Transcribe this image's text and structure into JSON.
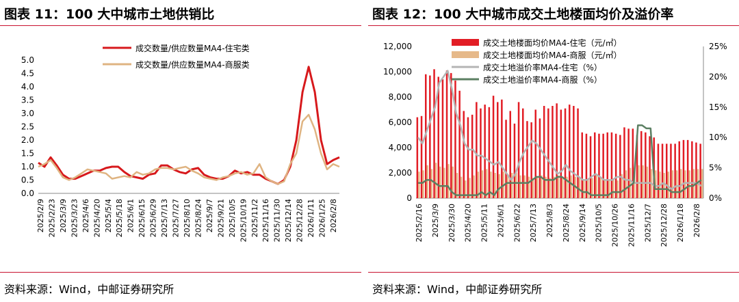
{
  "charts": [
    {
      "title": "图表 11：100 大中城市土地供销比",
      "source": "资料来源：Wind，中邮证券研究所",
      "chart_data": {
        "type": "line",
        "y_ticks": [
          "5.0",
          "4.5",
          "4.0",
          "3.5",
          "3.0",
          "2.5",
          "2.0",
          "1.5",
          "1.0",
          "0.5",
          "0.0"
        ],
        "ylim": [
          0,
          5
        ],
        "x_tick_labels": [
          "2025/2/9",
          "2025/2/23",
          "2025/3/9",
          "2025/3/23",
          "2025/4/6",
          "2025/4/20",
          "2025/5/4",
          "2025/5/18",
          "2025/6/1",
          "2025/6/15",
          "2025/6/29",
          "2025/7/13",
          "2025/7/27",
          "2025/8/10",
          "2025/8/24",
          "2025/9/7",
          "2025/9/21",
          "2025/10/5",
          "2025/10/19",
          "2025/11/2",
          "2025/11/16",
          "2025/11/30",
          "2025/12/14",
          "2025/12/28",
          "2026/1/11",
          "2026/1/25",
          "2026/2/8"
        ],
        "series": [
          {
            "name": "成交数量/供应数量MA4-住宅类",
            "color": "#d7191c",
            "values": [
              1.15,
              1.0,
              1.35,
              1.05,
              0.7,
              0.55,
              0.55,
              0.65,
              0.75,
              0.85,
              0.85,
              0.95,
              1.0,
              1.0,
              0.8,
              0.65,
              0.6,
              0.55,
              0.7,
              0.75,
              1.05,
              1.05,
              0.9,
              0.8,
              0.75,
              0.9,
              0.95,
              0.7,
              0.6,
              0.55,
              0.55,
              0.65,
              0.85,
              0.75,
              0.8,
              0.7,
              0.7,
              0.55,
              0.45,
              0.35,
              0.5,
              1.0,
              2.0,
              3.8,
              4.75,
              3.8,
              2.0,
              1.1,
              1.25,
              1.35
            ]
          },
          {
            "name": "成交数量/供应数量MA4-商服类",
            "color": "#dfb482",
            "values": [
              1.0,
              1.1,
              1.25,
              0.95,
              0.6,
              0.5,
              0.6,
              0.75,
              0.9,
              0.85,
              0.8,
              0.75,
              0.55,
              0.6,
              0.65,
              0.6,
              0.8,
              0.7,
              0.75,
              0.9,
              0.95,
              0.95,
              0.9,
              0.95,
              1.0,
              0.85,
              0.75,
              0.6,
              0.55,
              0.5,
              0.6,
              0.65,
              0.75,
              0.8,
              0.7,
              0.75,
              1.1,
              0.6,
              0.45,
              0.35,
              0.45,
              1.1,
              1.5,
              2.7,
              2.95,
              2.4,
              1.5,
              0.9,
              1.1,
              1.0
            ]
          }
        ]
      }
    },
    {
      "title": "图表 12：100 大中城市成交土地楼面均价及溢价率",
      "source": "资料来源：Wind，中邮证券研究所",
      "chart_data": {
        "type": "bar",
        "y_left_ticks": [
          "12,000",
          "10,000",
          "8,000",
          "6,000",
          "4,000",
          "2,000",
          "0"
        ],
        "ylim_left": [
          0,
          12000
        ],
        "y_right_ticks": [
          "25%",
          "20%",
          "15%",
          "10%",
          "5%",
          "0%"
        ],
        "ylim_right": [
          0,
          25
        ],
        "x_tick_labels": [
          "2025/2/16",
          "2025/3/9",
          "2025/3/30",
          "2025/4/20",
          "2025/5/11",
          "2025/6/1",
          "2025/6/22",
          "2025/7/13",
          "2025/8/3",
          "2025/8/24",
          "2025/9/14",
          "2025/10/5",
          "2025/10/26",
          "2025/11/16",
          "2025/12/7",
          "2025/12/28",
          "2026/1/18",
          "2026/2/8"
        ],
        "series": [
          {
            "name": "成交土地楼面均价MA4-住宅（元/㎡）",
            "kind": "bar",
            "axis": "left",
            "color": "#e21d25",
            "values": [
              6400,
              6500,
              9800,
              9700,
              10200,
              9600,
              9400,
              10100,
              9900,
              9300,
              8500,
              6900,
              6400,
              6600,
              7600,
              7100,
              7400,
              7200,
              8100,
              7600,
              7800,
              6200,
              6900,
              5900,
              7600,
              7100,
              6100,
              6000,
              7000,
              6300,
              7300,
              7100,
              7300,
              7500,
              7000,
              7100,
              7400,
              7300,
              7100,
              5200,
              5100,
              4900,
              5200,
              5100,
              5100,
              5200,
              5200,
              5100,
              5000,
              5600,
              5500,
              5500,
              5000,
              5300,
              5200,
              4900,
              4800,
              4300,
              4300,
              4300,
              4300,
              4300,
              4500,
              4600,
              4600,
              4500,
              4400,
              4300
            ]
          },
          {
            "name": "成交土地楼面均价MA4-商服（元/㎡）",
            "kind": "bar",
            "axis": "left",
            "color": "#e6b98a",
            "values": [
              2100,
              2200,
              2600,
              2300,
              2800,
              2500,
              2400,
              2700,
              2500,
              2000,
              1700,
              1400,
              1600,
              1800,
              2100,
              2200,
              2300,
              2100,
              2000,
              1900,
              2100,
              1900,
              2000,
              2000,
              1800,
              1800,
              1700,
              1600,
              1700,
              1800,
              1700,
              1600,
              1700,
              1800,
              1700,
              1700,
              1800,
              1700,
              1600,
              1500,
              1500,
              1600,
              1800,
              1700,
              1500,
              1400,
              1500,
              1400,
              1900,
              2200,
              2400,
              2400,
              2600,
              2600,
              2500,
              2300,
              2200,
              2100,
              2000,
              2100,
              2200,
              2200,
              2300,
              2200,
              2200,
              2300,
              2300,
              2300
            ]
          },
          {
            "name": "成交土地溢价率MA4-住宅（%）",
            "kind": "line",
            "axis": "right",
            "color": "#b4b4b4",
            "values": [
              10,
              9,
              11,
              13,
              15,
              19,
              20,
              21,
              18,
              14,
              12,
              9,
              8,
              8,
              7,
              7,
              6.5,
              6,
              5.5,
              6,
              5,
              4,
              3,
              4,
              6,
              7.5,
              8.5,
              9.5,
              9,
              8,
              7,
              6,
              5,
              4,
              4.5,
              5.5,
              4.5,
              4,
              3.5,
              3,
              3,
              3.5,
              4,
              3.5,
              3,
              3,
              3,
              3.5,
              3.5,
              3,
              3,
              2.5,
              2.5,
              2.5,
              2.5,
              2.5,
              2,
              2,
              2.5,
              2,
              1.5,
              2,
              2,
              2.5,
              2.5,
              2.5,
              2.5,
              2
            ]
          },
          {
            "name": "成交土地溢价率MA4-商服（%）",
            "kind": "line",
            "axis": "right",
            "color": "#5b7f62",
            "values": [
              2.5,
              2.5,
              3,
              3,
              2.5,
              2,
              2,
              2,
              1,
              0.5,
              0.5,
              0.5,
              0.5,
              0.5,
              0.5,
              1,
              0.5,
              1,
              0.5,
              1.5,
              2,
              2.5,
              2.5,
              2.5,
              2.5,
              2.5,
              2.5,
              3,
              3.5,
              3.5,
              3,
              3,
              3,
              3.5,
              3.5,
              3,
              2.5,
              2,
              1.5,
              1,
              1,
              0.5,
              0.5,
              0.5,
              0.5,
              0.5,
              1,
              1,
              1,
              1.5,
              2,
              2.5,
              12,
              12,
              11.5,
              11.5,
              1.5,
              1.5,
              1.5,
              1.5,
              1,
              1,
              1,
              1.5,
              2,
              2,
              2.5,
              3
            ]
          }
        ]
      }
    }
  ]
}
